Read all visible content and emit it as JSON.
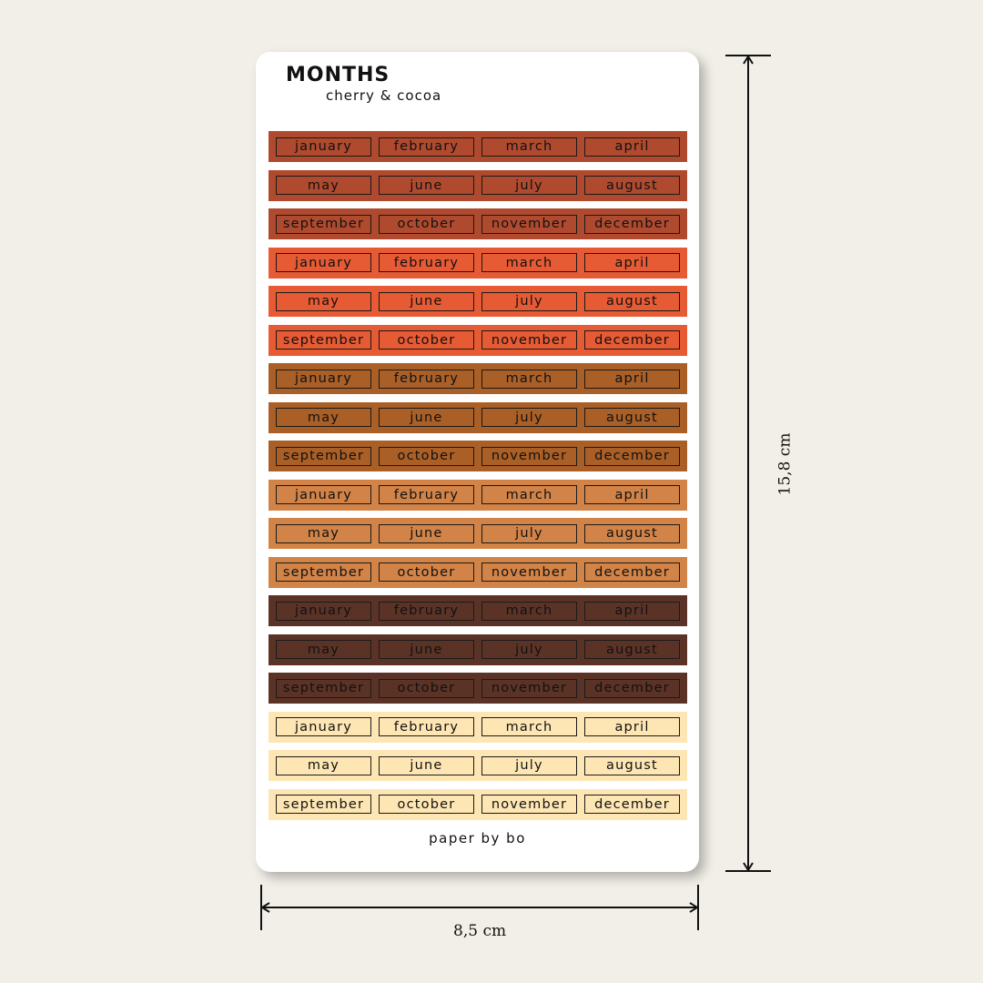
{
  "sheet": {
    "title": "MONTHS",
    "subtitle": "cherry & cocoa",
    "footer": "paper by bo"
  },
  "dimensions": {
    "width_label": "8,5 cm",
    "height_label": "15,8 cm"
  },
  "colors": {
    "cherry_dark": "#b04a2e",
    "cherry_bright": "#e65a34",
    "caramel": "#aa5f27",
    "tan": "#d28347",
    "cocoa": "#5b3326",
    "cream": "#fde6b3",
    "background": "#f2efe8"
  },
  "strips": [
    {
      "color": "#b04a2e",
      "labels": [
        "january",
        "february",
        "march",
        "april"
      ]
    },
    {
      "color": "#b04a2e",
      "labels": [
        "may",
        "june",
        "july",
        "august"
      ]
    },
    {
      "color": "#b04a2e",
      "labels": [
        "september",
        "october",
        "november",
        "december"
      ]
    },
    {
      "color": "#e65a34",
      "labels": [
        "january",
        "february",
        "march",
        "april"
      ]
    },
    {
      "color": "#e65a34",
      "labels": [
        "may",
        "june",
        "july",
        "august"
      ]
    },
    {
      "color": "#e65a34",
      "labels": [
        "september",
        "october",
        "november",
        "december"
      ]
    },
    {
      "color": "#aa5f27",
      "labels": [
        "january",
        "february",
        "march",
        "april"
      ]
    },
    {
      "color": "#aa5f27",
      "labels": [
        "may",
        "june",
        "july",
        "august"
      ]
    },
    {
      "color": "#aa5f27",
      "labels": [
        "september",
        "october",
        "november",
        "december"
      ]
    },
    {
      "color": "#d28347",
      "labels": [
        "january",
        "february",
        "march",
        "april"
      ]
    },
    {
      "color": "#d28347",
      "labels": [
        "may",
        "june",
        "july",
        "august"
      ]
    },
    {
      "color": "#d28347",
      "labels": [
        "september",
        "october",
        "november",
        "december"
      ]
    },
    {
      "color": "#5b3326",
      "labels": [
        "january",
        "february",
        "march",
        "april"
      ]
    },
    {
      "color": "#5b3326",
      "labels": [
        "may",
        "june",
        "july",
        "august"
      ]
    },
    {
      "color": "#5b3326",
      "labels": [
        "september",
        "october",
        "november",
        "december"
      ]
    },
    {
      "color": "#fde6b3",
      "labels": [
        "january",
        "february",
        "march",
        "april"
      ]
    },
    {
      "color": "#fde6b3",
      "labels": [
        "may",
        "june",
        "july",
        "august"
      ]
    },
    {
      "color": "#fde6b3",
      "labels": [
        "september",
        "october",
        "november",
        "december"
      ]
    }
  ]
}
